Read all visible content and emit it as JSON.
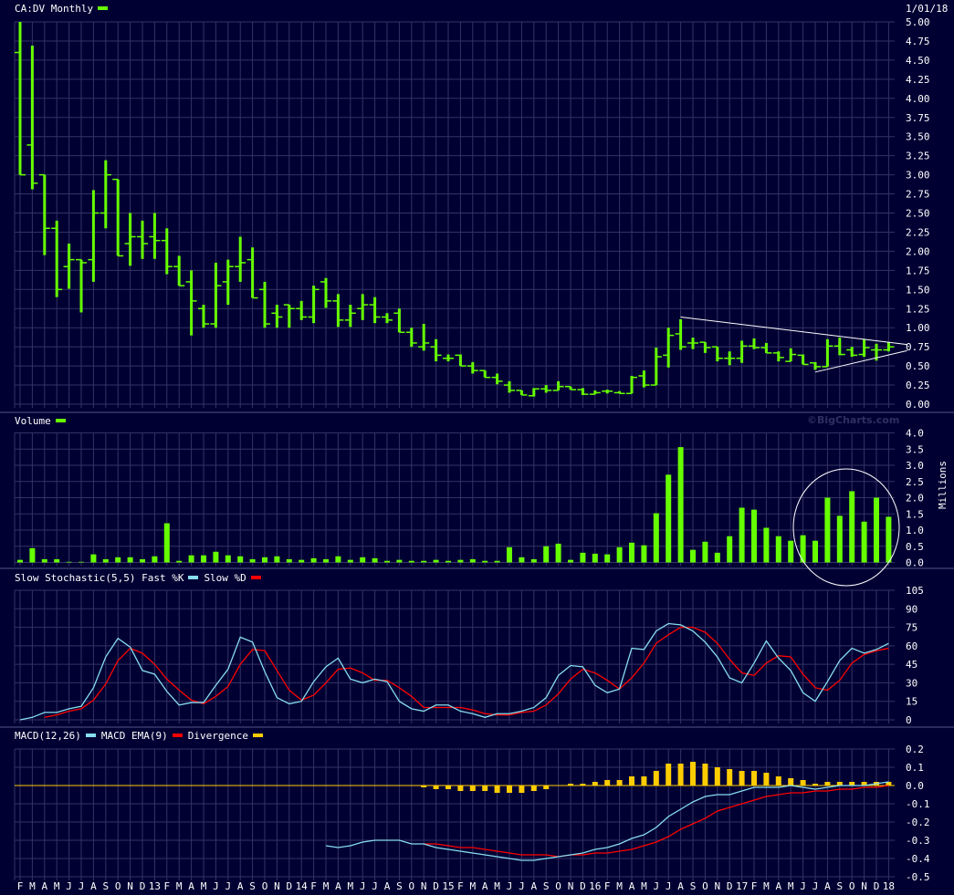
{
  "header": {
    "title": "CA:DV Monthly",
    "date": "1/01/18",
    "watermark": "©BigCharts.com"
  },
  "colors": {
    "background": "#000033",
    "grid": "#333366",
    "price": "#66ff00",
    "volume": "#66ff00",
    "fast_k": "#88ddee",
    "slow_d": "#ff0000",
    "macd": "#88ddee",
    "macd_ema": "#ff0000",
    "divergence": "#ffcc00",
    "annotation": "#ffffff"
  },
  "months": [
    "F",
    "M",
    "A",
    "M",
    "J",
    "J",
    "A",
    "S",
    "O",
    "N",
    "D",
    "13",
    "F",
    "M",
    "A",
    "M",
    "J",
    "J",
    "A",
    "S",
    "O",
    "N",
    "D",
    "14",
    "F",
    "M",
    "A",
    "M",
    "J",
    "J",
    "A",
    "S",
    "O",
    "N",
    "D",
    "15",
    "F",
    "M",
    "A",
    "M",
    "J",
    "J",
    "A",
    "S",
    "O",
    "N",
    "D",
    "16",
    "F",
    "M",
    "A",
    "M",
    "J",
    "J",
    "A",
    "S",
    "O",
    "N",
    "D",
    "17",
    "F",
    "M",
    "A",
    "M",
    "J",
    "J",
    "A",
    "S",
    "O",
    "N",
    "D",
    "18"
  ],
  "chart_data": [
    {
      "type": "ohlc",
      "title": "CA:DV Monthly",
      "ylim": [
        0,
        5
      ],
      "yticks": [
        "0.00",
        "0.25",
        "0.50",
        "0.75",
        "1.00",
        "1.25",
        "1.50",
        "1.75",
        "2.00",
        "2.25",
        "2.50",
        "2.75",
        "3.00",
        "3.25",
        "3.50",
        "3.75",
        "4.00",
        "4.25",
        "4.50",
        "4.75",
        "5.00"
      ],
      "grid": true,
      "open": [
        4.6,
        3.39,
        3.0,
        2.3,
        1.8,
        1.89,
        1.89,
        2.5,
        2.94,
        2.1,
        2.19,
        2.19,
        2.14,
        1.8,
        1.6,
        1.25,
        1.05,
        1.6,
        1.8,
        1.89,
        1.5,
        1.19,
        1.3,
        1.25,
        1.14,
        1.6,
        1.35,
        1.1,
        1.25,
        1.3,
        1.14,
        1.19,
        0.94,
        0.75,
        0.75,
        0.6,
        0.64,
        0.5,
        0.44,
        0.35,
        0.25,
        0.18,
        0.11,
        0.2,
        0.18,
        0.23,
        0.19,
        0.13,
        0.17,
        0.15,
        0.14,
        0.37,
        0.25,
        0.64,
        0.92,
        0.8,
        0.81,
        0.75,
        0.6,
        0.6,
        0.76,
        0.74,
        0.67,
        0.56,
        0.64,
        0.54,
        0.49,
        0.76,
        0.71,
        0.65,
        0.71,
        0.71
      ],
      "high": [
        5.0,
        4.69,
        3.0,
        2.4,
        2.1,
        1.89,
        2.8,
        3.19,
        2.94,
        2.5,
        2.4,
        2.5,
        2.3,
        1.94,
        1.75,
        1.3,
        1.85,
        1.89,
        2.19,
        2.05,
        1.6,
        1.3,
        1.3,
        1.35,
        1.55,
        1.65,
        1.44,
        1.3,
        1.44,
        1.4,
        1.19,
        1.25,
        1.0,
        1.05,
        0.85,
        0.65,
        0.65,
        0.55,
        0.44,
        0.4,
        0.3,
        0.18,
        0.21,
        0.25,
        0.3,
        0.23,
        0.21,
        0.18,
        0.19,
        0.17,
        0.37,
        0.44,
        0.74,
        1.0,
        1.11,
        0.87,
        0.81,
        0.75,
        0.69,
        0.83,
        0.86,
        0.8,
        0.69,
        0.73,
        0.65,
        0.55,
        0.85,
        0.87,
        0.75,
        0.85,
        0.79,
        0.81
      ],
      "low": [
        3.0,
        2.81,
        1.95,
        1.4,
        1.51,
        1.2,
        1.6,
        2.3,
        1.94,
        1.81,
        1.9,
        1.9,
        1.7,
        1.55,
        0.9,
        1.0,
        1.0,
        1.3,
        1.6,
        1.39,
        1.0,
        1.0,
        1.0,
        1.1,
        1.06,
        1.26,
        1.01,
        1.01,
        1.1,
        1.06,
        1.06,
        0.94,
        0.75,
        0.7,
        0.56,
        0.56,
        0.5,
        0.4,
        0.35,
        0.26,
        0.15,
        0.12,
        0.1,
        0.15,
        0.18,
        0.19,
        0.12,
        0.13,
        0.14,
        0.14,
        0.14,
        0.22,
        0.25,
        0.48,
        0.71,
        0.72,
        0.67,
        0.56,
        0.51,
        0.54,
        0.72,
        0.67,
        0.56,
        0.56,
        0.52,
        0.45,
        0.49,
        0.64,
        0.62,
        0.62,
        0.57,
        0.69
      ],
      "close": [
        3.0,
        2.89,
        2.3,
        1.5,
        1.89,
        1.85,
        2.5,
        3.0,
        1.94,
        2.19,
        2.1,
        2.14,
        1.8,
        1.55,
        1.35,
        1.05,
        1.55,
        1.8,
        1.85,
        1.39,
        1.05,
        1.14,
        1.25,
        1.14,
        1.5,
        1.35,
        1.1,
        1.19,
        1.3,
        1.14,
        1.1,
        0.94,
        0.8,
        0.8,
        0.64,
        0.6,
        0.5,
        0.44,
        0.35,
        0.3,
        0.18,
        0.12,
        0.2,
        0.18,
        0.23,
        0.19,
        0.13,
        0.15,
        0.17,
        0.14,
        0.35,
        0.25,
        0.62,
        0.9,
        0.75,
        0.8,
        0.74,
        0.6,
        0.6,
        0.76,
        0.74,
        0.67,
        0.61,
        0.65,
        0.52,
        0.49,
        0.76,
        0.65,
        0.64,
        0.74,
        0.71,
        0.75
      ],
      "annotations": {
        "trendlines": [
          {
            "from": {
              "bar": 55,
              "price": 1.14
            },
            "to": {
              "bar": 73.5,
              "price": 0.78
            }
          },
          {
            "from": {
              "bar": 66,
              "price": 0.42
            },
            "to": {
              "bar": 73.5,
              "price": 0.7
            }
          }
        ]
      }
    },
    {
      "type": "bar",
      "title": "Volume",
      "unit_label": "Millions",
      "ylim": [
        0,
        4
      ],
      "yticks": [
        "0.0",
        "0.5",
        "1.0",
        "1.5",
        "2.0",
        "2.5",
        "3.0",
        "3.5",
        "4.0"
      ],
      "values": [
        0.08,
        0.44,
        0.1,
        0.1,
        0.02,
        0.02,
        0.25,
        0.1,
        0.16,
        0.16,
        0.1,
        0.19,
        1.21,
        0.05,
        0.22,
        0.22,
        0.33,
        0.22,
        0.19,
        0.1,
        0.16,
        0.19,
        0.1,
        0.08,
        0.13,
        0.1,
        0.19,
        0.08,
        0.16,
        0.13,
        0.05,
        0.08,
        0.05,
        0.05,
        0.08,
        0.05,
        0.08,
        0.1,
        0.05,
        0.05,
        0.47,
        0.16,
        0.1,
        0.5,
        0.58,
        0.08,
        0.3,
        0.27,
        0.25,
        0.47,
        0.61,
        0.53,
        1.52,
        2.71,
        3.56,
        0.39,
        0.64,
        0.3,
        0.81,
        1.69,
        1.63,
        1.07,
        0.81,
        0.67,
        0.84,
        0.67,
        2.0,
        1.44,
        2.2,
        1.26,
        2.0,
        1.41
      ]
    },
    {
      "type": "line",
      "title": "Slow Stochastic(5,5)",
      "ylim": [
        0,
        105
      ],
      "yticks": [
        "0",
        "15",
        "30",
        "45",
        "60",
        "75",
        "90",
        "105"
      ],
      "series": [
        {
          "name": "Fast %K",
          "values": [
            0,
            2,
            6,
            6,
            9,
            11,
            26,
            51,
            66,
            59,
            40,
            37,
            23,
            12,
            14,
            14,
            28,
            41,
            67,
            63,
            39,
            18,
            13,
            15,
            31,
            43,
            50,
            33,
            30,
            33,
            31,
            15,
            9,
            7,
            12,
            12,
            7,
            5,
            2,
            5,
            5,
            7,
            10,
            18,
            36,
            44,
            43,
            28,
            22,
            25,
            58,
            57,
            72,
            78,
            77,
            72,
            63,
            51,
            34,
            30,
            46,
            64,
            50,
            40,
            22,
            15,
            31,
            48,
            58,
            54,
            57,
            62
          ]
        },
        {
          "name": "Slow %D",
          "values": [
            null,
            null,
            2,
            4,
            7,
            9,
            16,
            29,
            48,
            58,
            54,
            45,
            33,
            24,
            16,
            13,
            19,
            27,
            45,
            57,
            56,
            40,
            24,
            16,
            20,
            30,
            41,
            42,
            38,
            32,
            32,
            26,
            19,
            10,
            10,
            10,
            10,
            8,
            5,
            4,
            4,
            6,
            7,
            12,
            21,
            33,
            41,
            38,
            32,
            25,
            34,
            46,
            62,
            69,
            75,
            75,
            71,
            62,
            49,
            38,
            36,
            46,
            52,
            51,
            37,
            26,
            24,
            32,
            46,
            53,
            56,
            58
          ]
        }
      ]
    },
    {
      "type": "line",
      "title": "MACD(12,26)",
      "ylim": [
        -0.5,
        0.2
      ],
      "yticks": [
        "-0.5",
        "-0.4",
        "-0.3",
        "-0.2",
        "-0.1",
        "0.0",
        "0.1",
        "0.2"
      ],
      "series": [
        {
          "name": "MACD(12,26)",
          "values": [
            null,
            null,
            null,
            null,
            null,
            null,
            null,
            null,
            null,
            null,
            null,
            null,
            null,
            null,
            null,
            null,
            null,
            null,
            null,
            null,
            null,
            null,
            null,
            null,
            null,
            -0.33,
            -0.34,
            -0.33,
            -0.31,
            -0.3,
            -0.3,
            -0.3,
            -0.32,
            -0.32,
            -0.34,
            -0.35,
            -0.36,
            -0.37,
            -0.38,
            -0.39,
            -0.4,
            -0.41,
            -0.41,
            -0.4,
            -0.39,
            -0.38,
            -0.37,
            -0.35,
            -0.34,
            -0.32,
            -0.29,
            -0.27,
            -0.23,
            -0.17,
            -0.13,
            -0.09,
            -0.06,
            -0.05,
            -0.05,
            -0.03,
            -0.01,
            -0.01,
            -0.01,
            0.0,
            -0.01,
            -0.02,
            -0.01,
            0.0,
            0.0,
            0.0,
            0.01,
            0.02
          ]
        },
        {
          "name": "MACD EMA(9)",
          "values": [
            null,
            null,
            null,
            null,
            null,
            null,
            null,
            null,
            null,
            null,
            null,
            null,
            null,
            null,
            null,
            null,
            null,
            null,
            null,
            null,
            null,
            null,
            null,
            null,
            null,
            null,
            null,
            null,
            null,
            null,
            null,
            null,
            null,
            -0.32,
            -0.32,
            -0.33,
            -0.34,
            -0.34,
            -0.35,
            -0.36,
            -0.37,
            -0.38,
            -0.38,
            -0.38,
            -0.39,
            -0.38,
            -0.38,
            -0.37,
            -0.37,
            -0.36,
            -0.35,
            -0.33,
            -0.31,
            -0.28,
            -0.24,
            -0.21,
            -0.18,
            -0.14,
            -0.12,
            -0.1,
            -0.08,
            -0.06,
            -0.05,
            -0.04,
            -0.04,
            -0.03,
            -0.03,
            -0.02,
            -0.02,
            -0.01,
            -0.01,
            0.0
          ]
        },
        {
          "name": "Divergence",
          "type": "bar",
          "values": [
            null,
            null,
            null,
            null,
            null,
            null,
            null,
            null,
            null,
            null,
            null,
            null,
            null,
            null,
            null,
            null,
            null,
            null,
            null,
            null,
            null,
            null,
            null,
            null,
            null,
            null,
            null,
            null,
            null,
            null,
            null,
            null,
            null,
            -0.01,
            -0.02,
            -0.02,
            -0.03,
            -0.03,
            -0.03,
            -0.04,
            -0.04,
            -0.04,
            -0.03,
            -0.02,
            0,
            0.01,
            0.01,
            0.02,
            0.03,
            0.03,
            0.05,
            0.05,
            0.08,
            0.12,
            0.12,
            0.13,
            0.12,
            0.1,
            0.09,
            0.08,
            0.08,
            0.07,
            0.05,
            0.04,
            0.03,
            0.01,
            0.02,
            0.02,
            0.02,
            0.02,
            0.02,
            0.02
          ]
        }
      ]
    }
  ]
}
